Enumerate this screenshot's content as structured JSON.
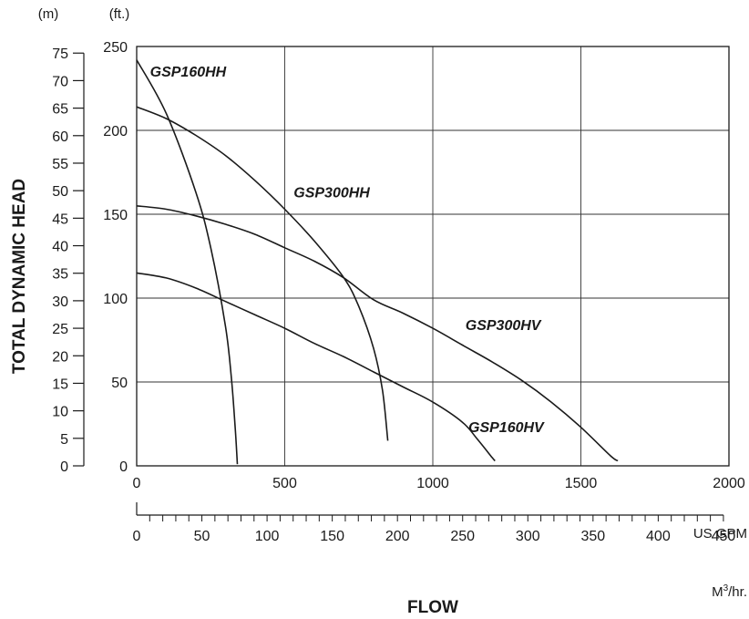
{
  "chart_data": {
    "type": "line",
    "title": "",
    "ylabel": "TOTAL DYNAMIC HEAD",
    "xlabel": "FLOW",
    "x_unit": "US GPM",
    "x2_unit_base": "M",
    "x2_unit_sup": "3",
    "x2_unit_tail": "/hr.",
    "y_unit_ft": "(ft.)",
    "y_unit_m": "(m)",
    "xlim": [
      0,
      2000
    ],
    "ylim": [
      0,
      250
    ],
    "x_ticks": [
      "0",
      "500",
      "1000",
      "1500",
      "2000"
    ],
    "y_ticks_ft": [
      "0",
      "50",
      "100",
      "150",
      "200",
      "250"
    ],
    "y_ticks_m": [
      "0",
      "5",
      "10",
      "15",
      "20",
      "25",
      "30",
      "35",
      "40",
      "45",
      "50",
      "55",
      "60",
      "65",
      "70",
      "75"
    ],
    "x2_ticks": [
      "0",
      "50",
      "100",
      "150",
      "200",
      "250",
      "300",
      "350",
      "400",
      "450"
    ],
    "grid": true,
    "series": [
      {
        "name": "GSP160HH",
        "points": [
          [
            0,
            242
          ],
          [
            100,
            210
          ],
          [
            200,
            163
          ],
          [
            250,
            130
          ],
          [
            300,
            83
          ],
          [
            320,
            52
          ],
          [
            333,
            22
          ],
          [
            340,
            1
          ]
        ]
      },
      {
        "name": "GSP300HH",
        "points": [
          [
            0,
            214
          ],
          [
            100,
            207
          ],
          [
            200,
            197
          ],
          [
            300,
            185
          ],
          [
            400,
            170
          ],
          [
            500,
            153
          ],
          [
            600,
            134
          ],
          [
            700,
            112
          ],
          [
            750,
            95
          ],
          [
            800,
            70
          ],
          [
            830,
            45
          ],
          [
            848,
            15
          ]
        ]
      },
      {
        "name": "GSP300HV",
        "points": [
          [
            0,
            155
          ],
          [
            100,
            153
          ],
          [
            200,
            149
          ],
          [
            300,
            144
          ],
          [
            400,
            138
          ],
          [
            500,
            130
          ],
          [
            600,
            122
          ],
          [
            700,
            112
          ],
          [
            800,
            99
          ],
          [
            900,
            91
          ],
          [
            1000,
            82
          ],
          [
            1100,
            72
          ],
          [
            1200,
            62
          ],
          [
            1300,
            51
          ],
          [
            1400,
            38
          ],
          [
            1500,
            23
          ],
          [
            1600,
            6
          ],
          [
            1625,
            3
          ]
        ]
      },
      {
        "name": "GSP160HV",
        "points": [
          [
            0,
            115
          ],
          [
            100,
            112
          ],
          [
            200,
            106
          ],
          [
            300,
            98
          ],
          [
            400,
            90
          ],
          [
            500,
            82
          ],
          [
            600,
            73
          ],
          [
            700,
            65
          ],
          [
            800,
            56
          ],
          [
            900,
            47
          ],
          [
            1000,
            38
          ],
          [
            1100,
            26
          ],
          [
            1150,
            16
          ],
          [
            1200,
            5
          ],
          [
            1210,
            3
          ]
        ]
      }
    ]
  }
}
